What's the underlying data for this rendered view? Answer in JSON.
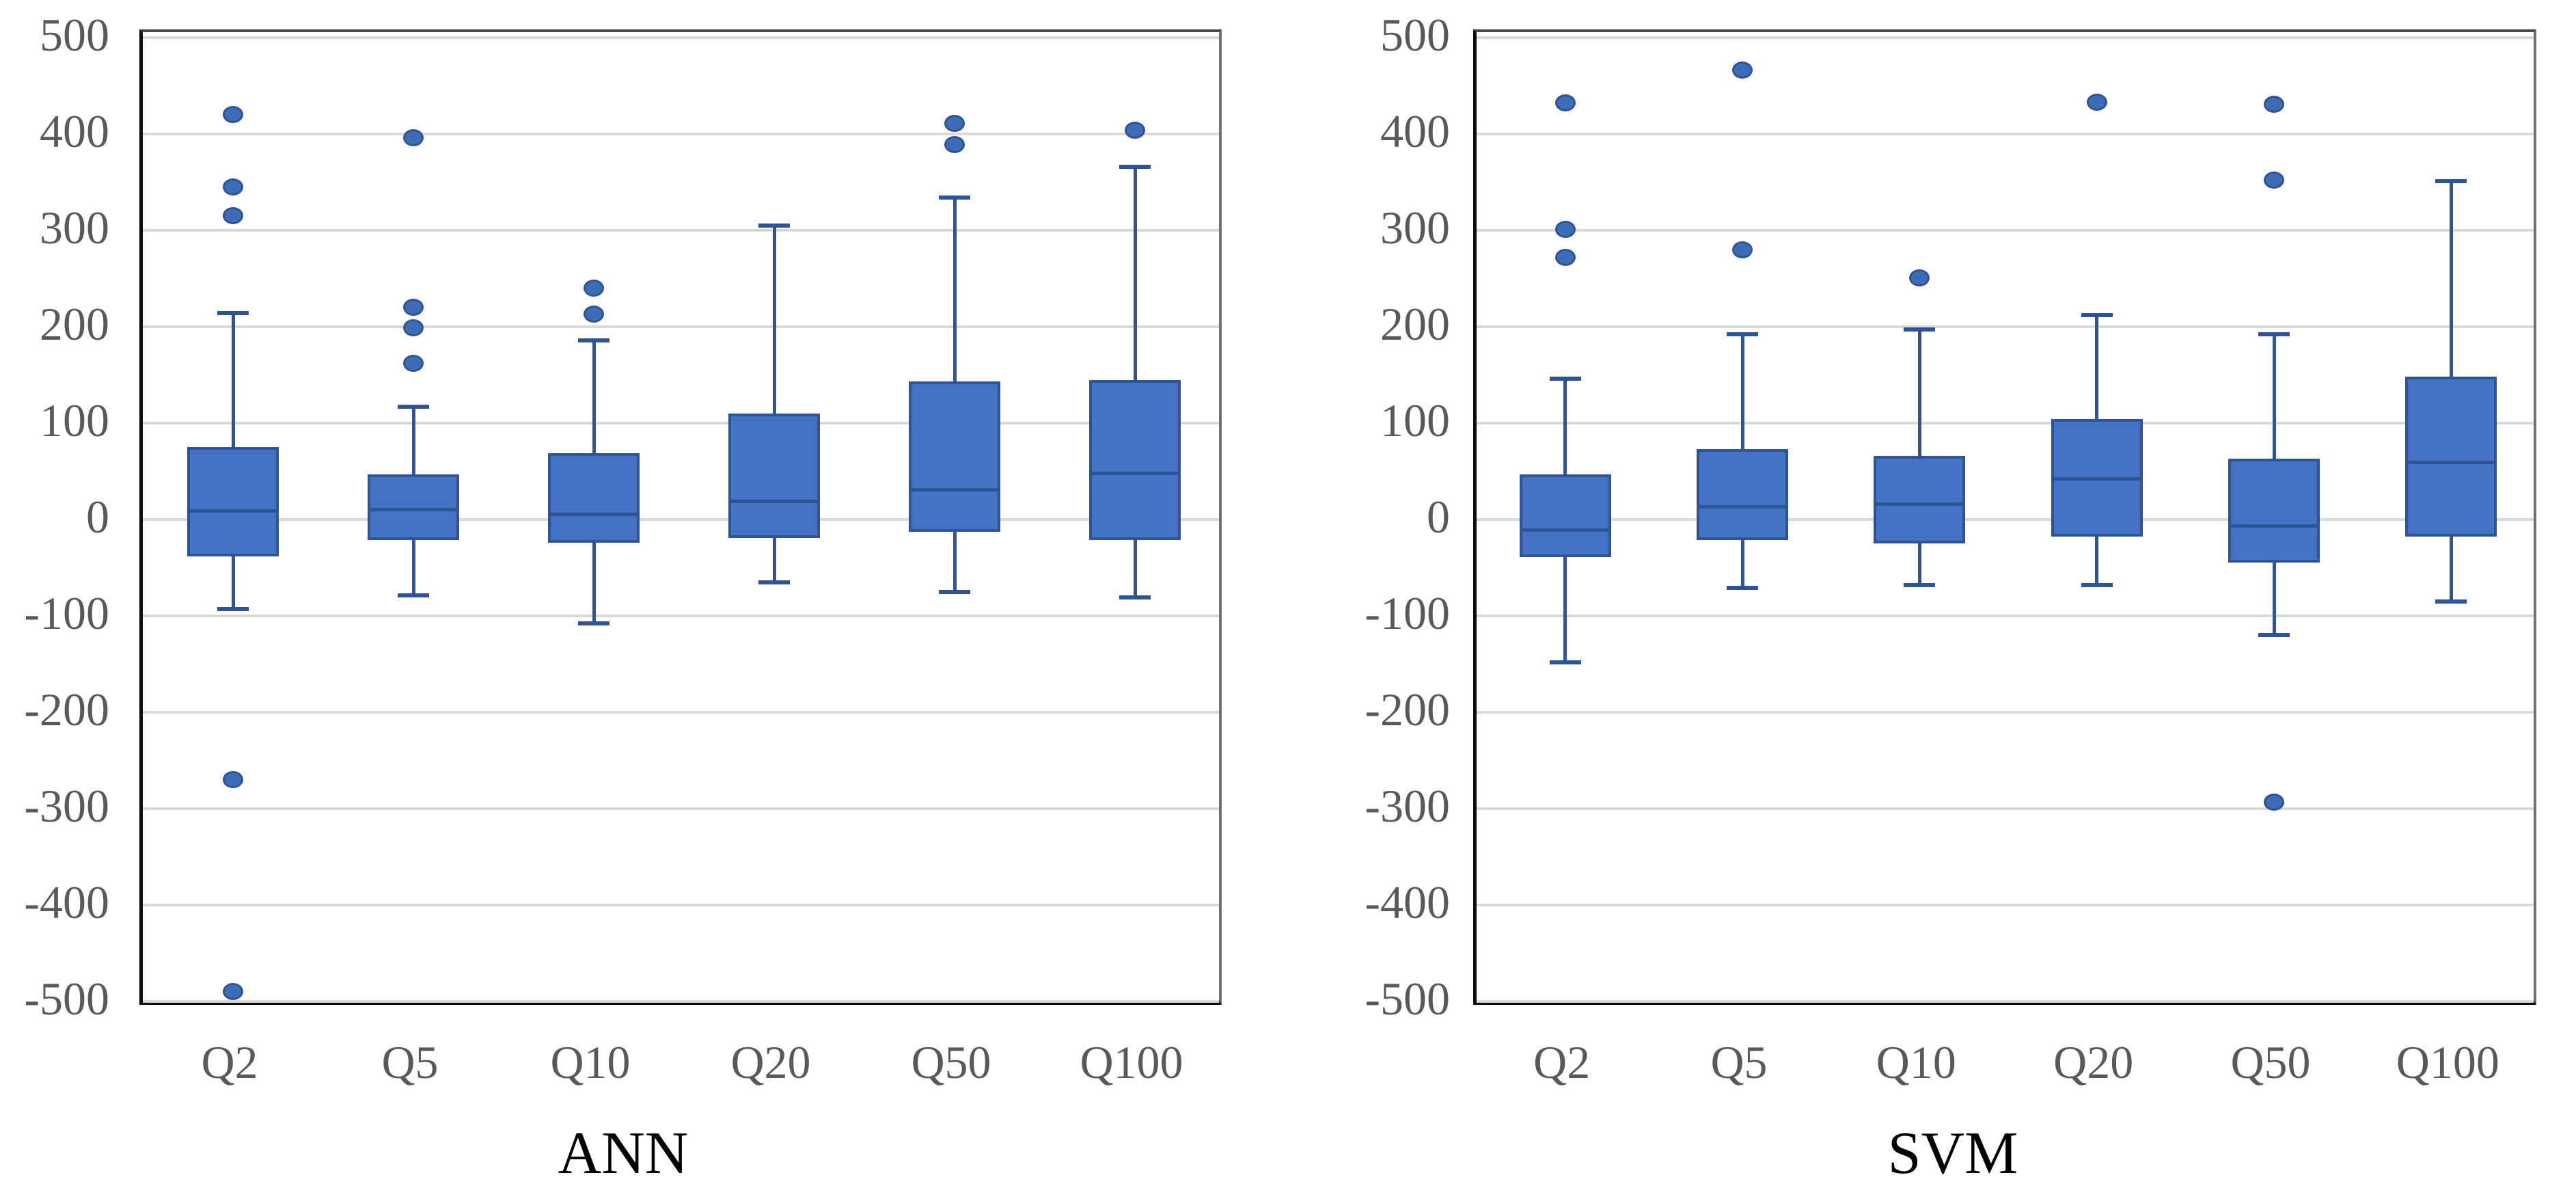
{
  "figure": {
    "background": "#ffffff",
    "colors": {
      "box_fill": "#4472C4",
      "box_border": "#2F5496",
      "whisker": "#2F5496",
      "median": "#2F5496",
      "outlier_fill": "#3E6CB5",
      "outlier_border": "#2F5496",
      "gridline": "#D9D9D9",
      "axis_label": "#595959",
      "title": "#000000"
    }
  },
  "chart_data": [
    {
      "type": "boxplot",
      "title": "ANN",
      "categories": [
        "Q2",
        "Q5",
        "Q10",
        "Q20",
        "Q50",
        "Q100"
      ],
      "y_axis": {
        "min": -500,
        "max": 500,
        "step": 100,
        "grid": true,
        "tick_labels": [
          "500",
          "400",
          "300",
          "200",
          "100",
          "0",
          "-100",
          "-200",
          "-300",
          "-400",
          "-500"
        ]
      },
      "series": [
        {
          "category": "Q2",
          "whisker_low": -93,
          "q1": -38,
          "median": 9,
          "q3": 75,
          "whisker_high": 214,
          "outliers": [
            420,
            345,
            315,
            -270,
            -490
          ]
        },
        {
          "category": "Q5",
          "whisker_low": -79,
          "q1": -21,
          "median": 10,
          "q3": 47,
          "whisker_high": 117,
          "outliers": [
            396,
            220,
            199,
            162
          ]
        },
        {
          "category": "Q10",
          "whisker_low": -108,
          "q1": -24,
          "median": 5,
          "q3": 69,
          "whisker_high": 186,
          "outliers": [
            240,
            213
          ]
        },
        {
          "category": "Q20",
          "whisker_low": -65,
          "q1": -19,
          "median": 19,
          "q3": 110,
          "whisker_high": 305,
          "outliers": []
        },
        {
          "category": "Q50",
          "whisker_low": -75,
          "q1": -13,
          "median": 31,
          "q3": 143,
          "whisker_high": 334,
          "outliers": [
            411,
            389
          ]
        },
        {
          "category": "Q100",
          "whisker_low": -81,
          "q1": -21,
          "median": 48,
          "q3": 145,
          "whisker_high": 366,
          "outliers": [
            404
          ]
        }
      ]
    },
    {
      "type": "boxplot",
      "title": "SVM",
      "categories": [
        "Q2",
        "Q5",
        "Q10",
        "Q20",
        "Q50",
        "Q100"
      ],
      "y_axis": {
        "min": -500,
        "max": 500,
        "step": 100,
        "grid": true,
        "tick_labels": [
          "500",
          "400",
          "300",
          "200",
          "100",
          "0",
          "-100",
          "-200",
          "-300",
          "-400",
          "-500"
        ]
      },
      "series": [
        {
          "category": "Q2",
          "whisker_low": -148,
          "q1": -39,
          "median": -11,
          "q3": 47,
          "whisker_high": 146,
          "outliers": [
            432,
            301,
            272
          ]
        },
        {
          "category": "Q5",
          "whisker_low": -71,
          "q1": -21,
          "median": 13,
          "q3": 73,
          "whisker_high": 192,
          "outliers": [
            466,
            280
          ]
        },
        {
          "category": "Q10",
          "whisker_low": -68,
          "q1": -25,
          "median": 16,
          "q3": 66,
          "whisker_high": 197,
          "outliers": [
            251
          ]
        },
        {
          "category": "Q20",
          "whisker_low": -68,
          "q1": -18,
          "median": 42,
          "q3": 104,
          "whisker_high": 212,
          "outliers": [
            433
          ]
        },
        {
          "category": "Q50",
          "whisker_low": -120,
          "q1": -45,
          "median": -7,
          "q3": 63,
          "whisker_high": 192,
          "outliers": [
            431,
            352,
            -293
          ]
        },
        {
          "category": "Q100",
          "whisker_low": -85,
          "q1": -18,
          "median": 59,
          "q3": 148,
          "whisker_high": 351,
          "outliers": []
        }
      ]
    }
  ]
}
